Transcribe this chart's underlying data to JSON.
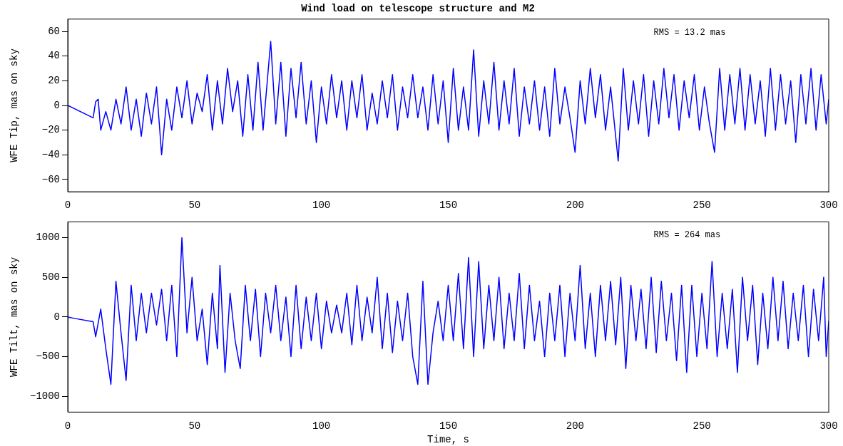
{
  "chart_data": [
    {
      "type": "line",
      "title": "Wind load on telescope structure and M2",
      "ylabel": "WFE Tip, mas on sky",
      "xlim": [
        0,
        300
      ],
      "xticks": [
        0,
        50,
        100,
        150,
        200,
        250,
        300
      ],
      "ylim": [
        -70,
        70
      ],
      "yticks": [
        -60,
        -40,
        -20,
        0,
        20,
        40,
        60
      ],
      "grid": false,
      "legend": false,
      "marker": "none",
      "annotations": [
        "RMS = 13.2 mas"
      ],
      "series": [
        {
          "color": "#0000ff",
          "x": [
            0,
            10,
            11,
            12,
            13,
            15,
            17,
            19,
            21,
            23,
            25,
            27,
            29,
            31,
            33,
            35,
            37,
            39,
            41,
            43,
            45,
            47,
            49,
            51,
            53,
            55,
            57,
            59,
            61,
            63,
            65,
            67,
            69,
            71,
            73,
            75,
            77,
            80,
            82,
            84,
            86,
            88,
            90,
            92,
            94,
            96,
            98,
            100,
            102,
            104,
            106,
            108,
            110,
            112,
            114,
            116,
            118,
            120,
            122,
            124,
            126,
            128,
            130,
            132,
            134,
            136,
            138,
            140,
            142,
            144,
            146,
            148,
            150,
            152,
            154,
            156,
            158,
            160,
            162,
            164,
            166,
            168,
            170,
            172,
            174,
            176,
            178,
            180,
            182,
            184,
            186,
            188,
            190,
            192,
            194,
            196,
            198,
            200,
            202,
            204,
            206,
            208,
            210,
            212,
            214,
            217,
            219,
            221,
            223,
            225,
            227,
            229,
            231,
            233,
            235,
            237,
            239,
            241,
            243,
            245,
            247,
            249,
            251,
            253,
            255,
            257,
            259,
            261,
            263,
            265,
            267,
            269,
            271,
            273,
            275,
            277,
            279,
            281,
            283,
            285,
            287,
            289,
            291,
            293,
            295,
            297,
            299,
            300
          ],
          "values": [
            0,
            -10,
            3,
            5,
            -20,
            -5,
            -20,
            5,
            -15,
            15,
            -20,
            5,
            -25,
            10,
            -15,
            15,
            -40,
            5,
            -20,
            15,
            -10,
            20,
            -15,
            10,
            -5,
            25,
            -20,
            20,
            -15,
            30,
            -5,
            20,
            -25,
            25,
            -20,
            35,
            -20,
            52,
            -15,
            35,
            -25,
            30,
            -10,
            35,
            -15,
            20,
            -30,
            15,
            -15,
            25,
            -10,
            20,
            -20,
            20,
            -10,
            25,
            -20,
            10,
            -15,
            20,
            -10,
            25,
            -20,
            15,
            -10,
            25,
            -10,
            15,
            -20,
            25,
            -15,
            20,
            -30,
            30,
            -20,
            15,
            -20,
            45,
            -25,
            20,
            -15,
            35,
            -20,
            20,
            -15,
            30,
            -25,
            15,
            -15,
            20,
            -20,
            15,
            -25,
            30,
            -15,
            15,
            -10,
            -38,
            20,
            -15,
            30,
            -10,
            25,
            -20,
            15,
            -45,
            30,
            -20,
            20,
            -15,
            25,
            -25,
            20,
            -15,
            30,
            -10,
            25,
            -20,
            20,
            -10,
            25,
            -20,
            15,
            -15,
            -38,
            30,
            -20,
            25,
            -15,
            30,
            -20,
            25,
            -15,
            20,
            -25,
            30,
            -20,
            25,
            -15,
            20,
            -30,
            25,
            -15,
            30,
            -20,
            25,
            -15,
            5
          ]
        }
      ]
    },
    {
      "type": "line",
      "xlabel": "Time, s",
      "ylabel": "WFE Tilt, mas on sky",
      "xlim": [
        0,
        300
      ],
      "xticks": [
        0,
        50,
        100,
        150,
        200,
        250,
        300
      ],
      "ylim": [
        -1200,
        1200
      ],
      "yticks": [
        -1000,
        -500,
        0,
        500,
        1000
      ],
      "grid": false,
      "legend": false,
      "marker": "none",
      "annotations": [
        "RMS = 264 mas"
      ],
      "series": [
        {
          "color": "#0000ff",
          "x": [
            0,
            3,
            10,
            11,
            13,
            15,
            17,
            19,
            21,
            23,
            25,
            27,
            29,
            31,
            33,
            35,
            37,
            39,
            41,
            43,
            45,
            47,
            49,
            51,
            53,
            55,
            57,
            59,
            60,
            62,
            64,
            66,
            68,
            70,
            72,
            74,
            76,
            78,
            80,
            82,
            84,
            86,
            88,
            90,
            92,
            94,
            96,
            98,
            100,
            102,
            104,
            106,
            108,
            110,
            112,
            114,
            116,
            118,
            120,
            122,
            124,
            126,
            128,
            130,
            132,
            134,
            136,
            138,
            140,
            142,
            144,
            146,
            148,
            150,
            152,
            154,
            156,
            158,
            160,
            162,
            164,
            166,
            168,
            170,
            172,
            174,
            176,
            178,
            180,
            182,
            184,
            186,
            188,
            190,
            192,
            194,
            196,
            198,
            200,
            202,
            204,
            206,
            208,
            210,
            212,
            214,
            216,
            218,
            220,
            222,
            224,
            226,
            228,
            230,
            232,
            234,
            236,
            238,
            240,
            242,
            244,
            246,
            248,
            250,
            252,
            254,
            256,
            258,
            260,
            262,
            264,
            266,
            268,
            270,
            272,
            274,
            276,
            278,
            280,
            282,
            284,
            286,
            288,
            290,
            292,
            294,
            296,
            298,
            299,
            300
          ],
          "values": [
            0,
            -20,
            -60,
            -250,
            100,
            -400,
            -850,
            450,
            -200,
            -800,
            400,
            -300,
            300,
            -200,
            300,
            -100,
            350,
            -300,
            400,
            -500,
            1000,
            -200,
            500,
            -300,
            100,
            -600,
            300,
            -400,
            650,
            -700,
            300,
            -300,
            -650,
            400,
            -300,
            350,
            -500,
            300,
            -200,
            400,
            -300,
            250,
            -500,
            400,
            -400,
            250,
            -300,
            300,
            -400,
            200,
            -200,
            150,
            -200,
            300,
            -350,
            400,
            -300,
            250,
            -200,
            500,
            -400,
            300,
            -450,
            200,
            -300,
            300,
            -500,
            -850,
            450,
            -850,
            -200,
            200,
            -300,
            400,
            -300,
            550,
            -400,
            750,
            -500,
            700,
            -400,
            400,
            -300,
            500,
            -400,
            300,
            -300,
            550,
            -400,
            400,
            -300,
            200,
            -500,
            300,
            -300,
            400,
            -500,
            300,
            -300,
            650,
            -400,
            300,
            -500,
            400,
            -300,
            450,
            -350,
            500,
            -650,
            400,
            -300,
            350,
            -400,
            500,
            -450,
            450,
            -300,
            300,
            -550,
            400,
            -700,
            400,
            -500,
            300,
            -400,
            700,
            -500,
            300,
            -400,
            350,
            -700,
            500,
            -300,
            400,
            -600,
            300,
            -400,
            500,
            -300,
            450,
            -400,
            300,
            -300,
            400,
            -500,
            350,
            -300,
            500,
            -500,
            -50
          ]
        }
      ]
    }
  ]
}
